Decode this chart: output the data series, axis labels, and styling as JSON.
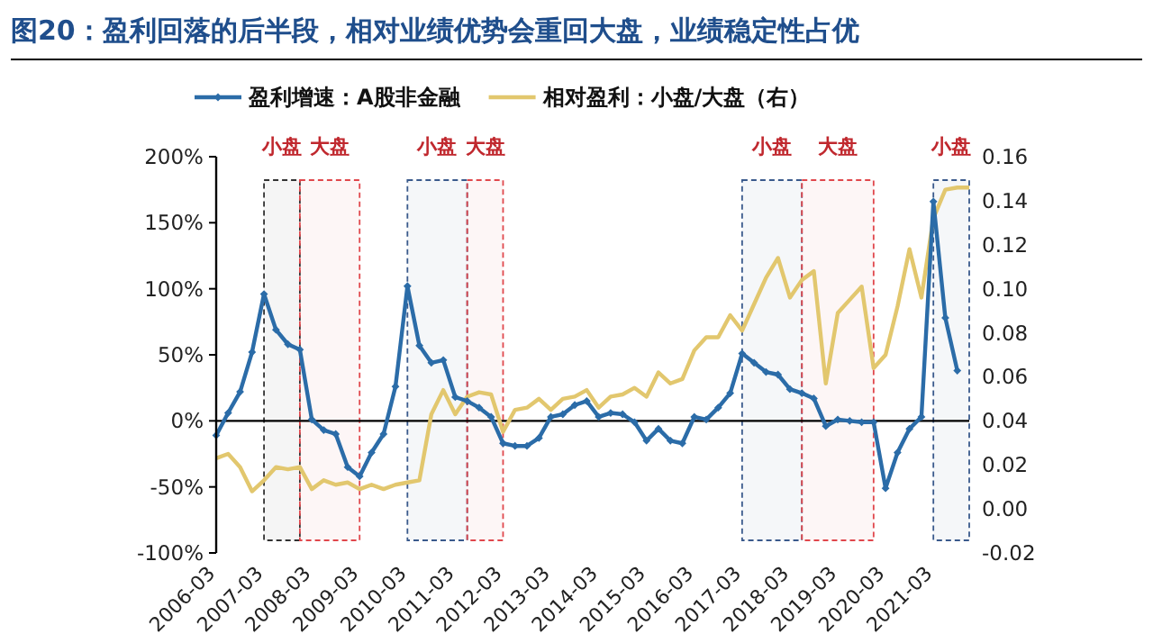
{
  "chart_data": {
    "type": "line",
    "title": "图20：盈利回落的后半段，相对业绩优势会重回大盘，业绩稳定性占优",
    "x": [
      "2006-03",
      "2006-06",
      "2006-09",
      "2006-12",
      "2007-03",
      "2007-06",
      "2007-09",
      "2007-12",
      "2008-03",
      "2008-06",
      "2008-09",
      "2008-12",
      "2009-03",
      "2009-06",
      "2009-09",
      "2009-12",
      "2010-03",
      "2010-06",
      "2010-09",
      "2010-12",
      "2011-03",
      "2011-06",
      "2011-09",
      "2011-12",
      "2012-03",
      "2012-06",
      "2012-09",
      "2012-12",
      "2013-03",
      "2013-06",
      "2013-09",
      "2013-12",
      "2014-03",
      "2014-06",
      "2014-09",
      "2014-12",
      "2015-03",
      "2015-06",
      "2015-09",
      "2015-12",
      "2016-03",
      "2016-06",
      "2016-09",
      "2016-12",
      "2017-03",
      "2017-06",
      "2017-09",
      "2017-12",
      "2018-03",
      "2018-06",
      "2018-09",
      "2018-12",
      "2019-03",
      "2019-06",
      "2019-09",
      "2019-12",
      "2020-03",
      "2020-06",
      "2020-09",
      "2020-12",
      "2021-03",
      "2021-06",
      "2021-09",
      "2021-12"
    ],
    "series": [
      {
        "name": "盈利增速：A股非金融",
        "color": "#2b6ca8",
        "marker": "diamond",
        "values": [
          -11,
          6,
          22,
          52,
          96,
          69,
          58,
          54,
          1,
          -7,
          -10,
          -35,
          -42,
          -24,
          -10,
          26,
          102,
          57,
          44,
          46,
          18,
          15,
          10,
          3,
          -17,
          -19,
          -19,
          -13,
          3,
          5,
          12,
          15,
          3,
          6,
          5,
          -1,
          -15,
          -6,
          -15,
          -17,
          3,
          1,
          10,
          21,
          51,
          44,
          37,
          35,
          24,
          21,
          17,
          -4,
          1,
          0,
          -1,
          -1,
          -51,
          -24,
          -6,
          3,
          166,
          78,
          38,
          null
        ]
      },
      {
        "name": "相对盈利：小盘/大盘（右）",
        "color": "#e2c76e",
        "axis": "y2",
        "values": [
          0.023,
          0.025,
          0.019,
          0.008,
          0.013,
          0.019,
          0.018,
          0.019,
          0.009,
          0.013,
          0.011,
          0.012,
          0.009,
          0.011,
          0.009,
          0.011,
          0.012,
          0.013,
          0.043,
          0.054,
          0.043,
          0.051,
          0.053,
          0.052,
          0.035,
          0.045,
          0.046,
          0.05,
          0.045,
          0.05,
          0.051,
          0.054,
          0.046,
          0.051,
          0.052,
          0.055,
          0.051,
          0.062,
          0.057,
          0.059,
          0.072,
          0.078,
          0.078,
          0.088,
          0.081,
          0.093,
          0.105,
          0.114,
          0.096,
          0.104,
          0.108,
          0.057,
          0.089,
          0.095,
          0.101,
          0.064,
          0.07,
          0.092,
          0.118,
          0.096,
          0.132,
          0.145,
          0.146,
          0.146
        ]
      }
    ],
    "xlim": [
      "2006-03",
      "2021-12"
    ],
    "xticks": [
      "2006-03",
      "2007-03",
      "2008-03",
      "2009-03",
      "2010-03",
      "2011-03",
      "2012-03",
      "2013-03",
      "2014-03",
      "2015-03",
      "2016-03",
      "2017-03",
      "2018-03",
      "2019-03",
      "2020-03",
      "2021-03"
    ],
    "ylim": [
      -100,
      200
    ],
    "yticks": [
      {
        "value": -100,
        "label": "-100%"
      },
      {
        "value": -50,
        "label": "-50%"
      },
      {
        "value": 0,
        "label": "0%"
      },
      {
        "value": 50,
        "label": "50%"
      },
      {
        "value": 100,
        "label": "100%"
      },
      {
        "value": 150,
        "label": "150%"
      },
      {
        "value": 200,
        "label": "200%"
      }
    ],
    "y2lim": [
      -0.02,
      0.16
    ],
    "y2ticks": [
      {
        "value": -0.02,
        "label": "-0.02"
      },
      {
        "value": 0,
        "label": "0.00"
      },
      {
        "value": 0.02,
        "label": "0.02"
      },
      {
        "value": 0.04,
        "label": "0.04"
      },
      {
        "value": 0.06,
        "label": "0.06"
      },
      {
        "value": 0.08,
        "label": "0.08"
      },
      {
        "value": 0.1,
        "label": "0.10"
      },
      {
        "value": 0.12,
        "label": "0.12"
      },
      {
        "value": 0.14,
        "label": "0.14"
      },
      {
        "value": 0.16,
        "label": "0.16"
      }
    ],
    "ref_lines": [
      {
        "axis": "y",
        "value": 0,
        "color": "#000000"
      }
    ],
    "bands": [
      {
        "axis": "x",
        "from": "2007-03",
        "to": "2007-12",
        "label": "小盘",
        "color": "#333333"
      },
      {
        "axis": "x",
        "from": "2007-12",
        "to": "2009-03",
        "label": "大盘",
        "color": "#e0474c"
      },
      {
        "axis": "x",
        "from": "2010-03",
        "to": "2011-06",
        "label": "小盘",
        "color": "#3a5a8c"
      },
      {
        "axis": "x",
        "from": "2011-06",
        "to": "2012-03",
        "label": "大盘",
        "color": "#e0474c"
      },
      {
        "axis": "x",
        "from": "2017-03",
        "to": "2018-06",
        "label": "小盘",
        "color": "#3a5a8c"
      },
      {
        "axis": "x",
        "from": "2018-06",
        "to": "2019-12",
        "label": "大盘",
        "color": "#e0474c"
      },
      {
        "axis": "x",
        "from": "2021-03",
        "to": "2021-12",
        "label": "小盘",
        "color": "#3a5a8c"
      }
    ],
    "grid": false,
    "legend": "top"
  }
}
